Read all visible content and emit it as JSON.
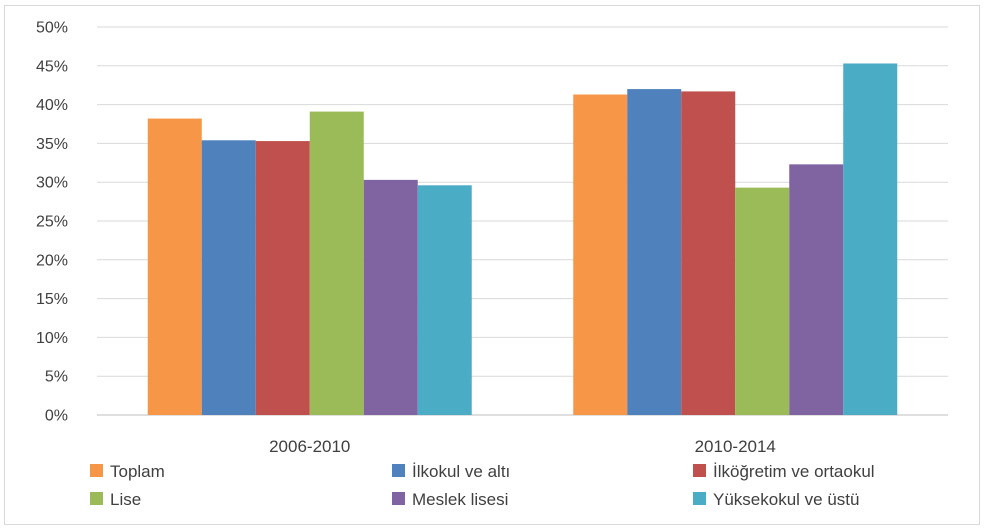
{
  "chart_data": {
    "type": "bar",
    "title": "",
    "xlabel": "",
    "ylabel": "",
    "categories": [
      "2006-2010",
      "2010-2014"
    ],
    "series": [
      {
        "name": "Toplam",
        "color": "#f79646",
        "values": [
          38.2,
          41.3
        ]
      },
      {
        "name": "İlkokul ve altı",
        "color": "#4f81bd",
        "values": [
          35.4,
          42.0
        ]
      },
      {
        "name": "İlköğretim ve ortaokul",
        "color": "#c0504d",
        "values": [
          35.3,
          41.7
        ]
      },
      {
        "name": "Lise",
        "color": "#9bbb59",
        "values": [
          39.1,
          29.3
        ]
      },
      {
        "name": "Meslek lisesi",
        "color": "#8064a2",
        "values": [
          30.3,
          32.3
        ]
      },
      {
        "name": "Yüksekokul ve üstü",
        "color": "#4bacc6",
        "values": [
          29.6,
          45.3
        ]
      }
    ],
    "ylim": [
      0,
      50
    ],
    "y_ticks": [
      0,
      5,
      10,
      15,
      20,
      25,
      30,
      35,
      40,
      45,
      50
    ],
    "y_tick_labels": [
      "0%",
      "5%",
      "10%",
      "15%",
      "20%",
      "25%",
      "30%",
      "35%",
      "40%",
      "45%",
      "50%"
    ],
    "grid": true,
    "legend_position": "bottom"
  }
}
